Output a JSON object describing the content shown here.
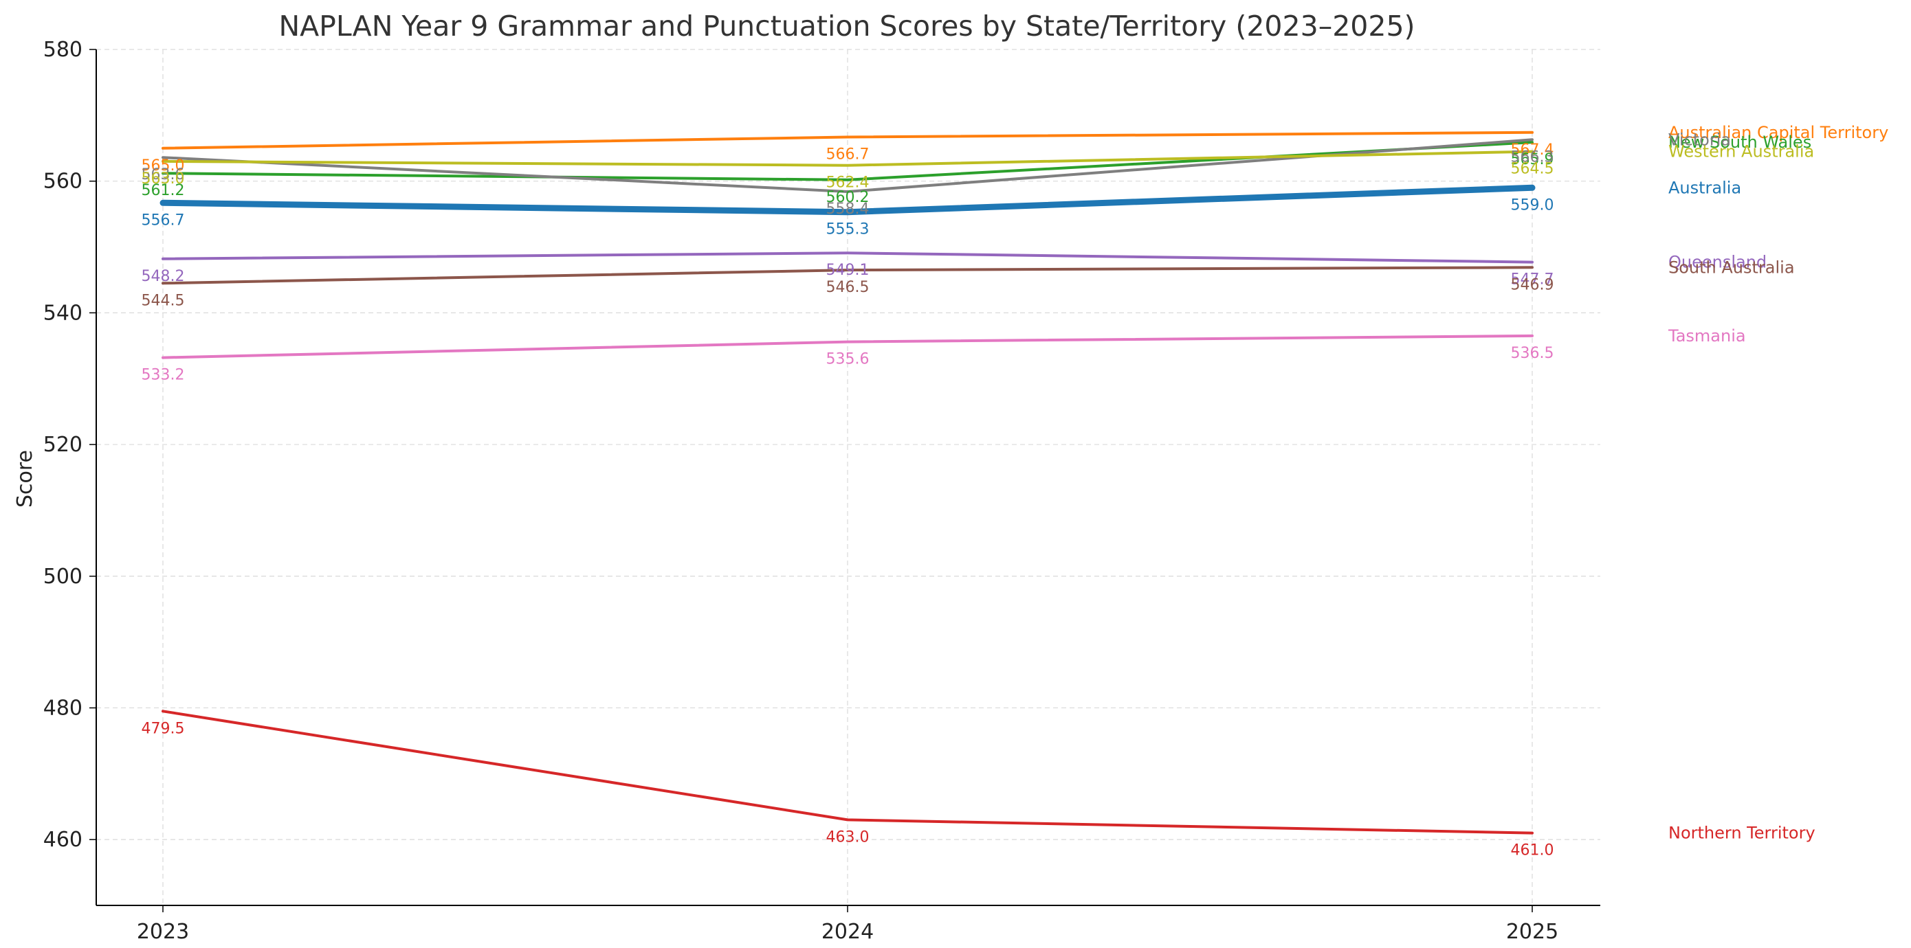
{
  "chart_data": {
    "type": "line",
    "title": "NAPLAN Year 9 Grammar and Punctuation Scores by State/Territory (2023–2025)",
    "xlabel": "",
    "ylabel": "Score",
    "x": [
      "2023",
      "2024",
      "2025"
    ],
    "ylim": [
      450,
      580
    ],
    "yticks": [
      460,
      480,
      500,
      520,
      540,
      560,
      580
    ],
    "grid": true,
    "legend": "right-side inline labels",
    "series": [
      {
        "name": "Australia",
        "color": "#1f77b4",
        "emphasis": true,
        "values": [
          556.7,
          555.3,
          559.0
        ],
        "labels": [
          "556.7",
          "555.3",
          "559.0"
        ]
      },
      {
        "name": "Australian Capital Territory",
        "color": "#ff7f0e",
        "values": [
          565.0,
          566.7,
          567.4
        ],
        "labels": [
          "565.0",
          "566.7",
          "567.4"
        ]
      },
      {
        "name": "New South Wales",
        "color": "#2ca02c",
        "values": [
          561.2,
          560.2,
          565.9
        ],
        "labels": [
          "561.2",
          "560.2",
          "565.9"
        ]
      },
      {
        "name": "Northern Territory",
        "color": "#d62728",
        "values": [
          479.5,
          463.0,
          461.0
        ],
        "labels": [
          "479.5",
          "463.0",
          "461.0"
        ]
      },
      {
        "name": "Queensland",
        "color": "#9467bd",
        "values": [
          548.2,
          549.1,
          547.7
        ],
        "labels": [
          "548.2",
          "549.1",
          "547.7"
        ]
      },
      {
        "name": "South Australia",
        "color": "#8c564b",
        "values": [
          544.5,
          546.5,
          546.9
        ],
        "labels": [
          "544.5",
          "546.5",
          "546.9"
        ]
      },
      {
        "name": "Tasmania",
        "color": "#e377c2",
        "values": [
          533.2,
          535.6,
          536.5
        ],
        "labels": [
          "533.2",
          "535.6",
          "536.5"
        ]
      },
      {
        "name": "Victoria",
        "color": "#7f7f7f",
        "values": [
          563.6,
          558.4,
          566.3
        ],
        "labels": [
          "563.6",
          "558.4",
          "566.3"
        ]
      },
      {
        "name": "Western Australia",
        "color": "#bcbd22",
        "values": [
          563.0,
          562.4,
          564.5
        ],
        "labels": [
          "563.0",
          "562.4",
          "564.5"
        ]
      }
    ]
  }
}
